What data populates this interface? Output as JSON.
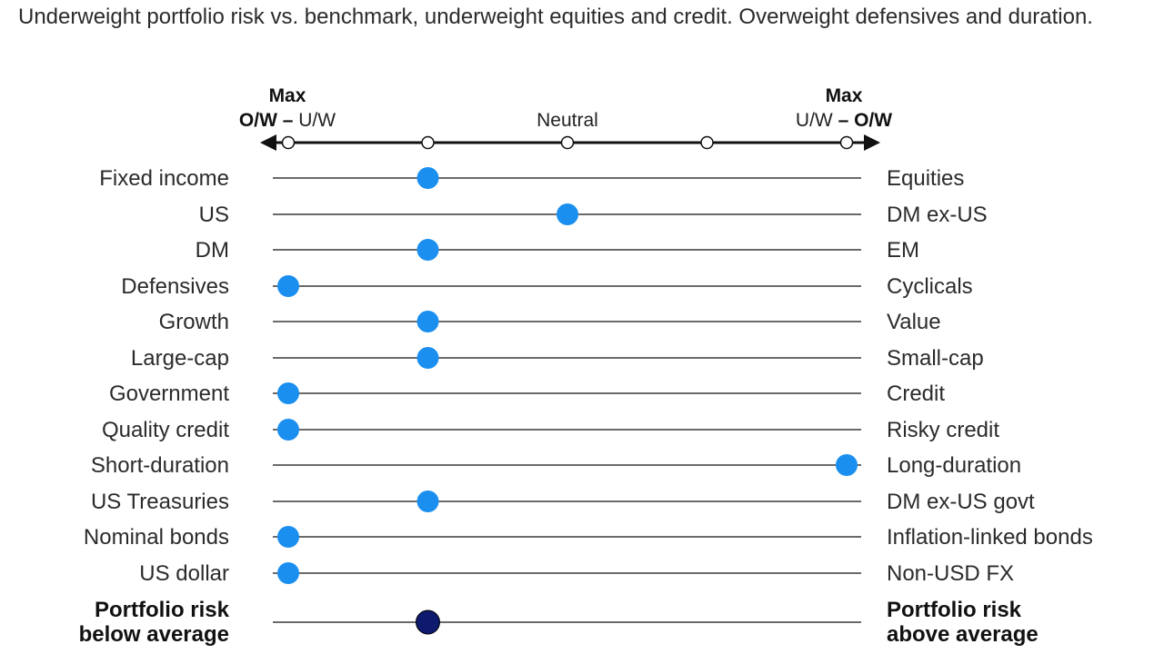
{
  "headline": "Underweight portfolio risk vs. benchmark, underweight equities and credit. Overweight defensives and duration.",
  "scale": {
    "left_top": "Max",
    "left_bottom_bold": "O/W",
    "left_bottom_dash": " – ",
    "left_bottom_plain": "U/W",
    "center": "Neutral",
    "right_top": "Max",
    "right_bottom_plain": "U/W",
    "right_bottom_dash": " – ",
    "right_bottom_bold": "O/W",
    "positions": [
      -2,
      -1,
      0,
      1,
      2
    ]
  },
  "colors": {
    "dot": "#1a8ff0",
    "dot_dark": "#0d1a6e",
    "line": "#111111"
  },
  "chart_data": {
    "type": "dot-scale",
    "x_range": [
      -2,
      2
    ],
    "rows": [
      {
        "left": [
          "Fixed income"
        ],
        "right": [
          "Equities"
        ],
        "value": -1
      },
      {
        "left": [
          "US"
        ],
        "right": [
          "DM ex-US"
        ],
        "value": 0
      },
      {
        "left": [
          "DM"
        ],
        "right": [
          "EM"
        ],
        "value": -1
      },
      {
        "left": [
          "Defensives"
        ],
        "right": [
          "Cyclicals"
        ],
        "value": -2
      },
      {
        "left": [
          "Growth"
        ],
        "right": [
          "Value"
        ],
        "value": -1
      },
      {
        "left": [
          "Large-cap"
        ],
        "right": [
          "Small-cap"
        ],
        "value": -1
      },
      {
        "left": [
          "Government"
        ],
        "right": [
          "Credit"
        ],
        "value": -2
      },
      {
        "left": [
          "Quality credit"
        ],
        "right": [
          "Risky credit"
        ],
        "value": -2
      },
      {
        "left": [
          "Short-duration"
        ],
        "right": [
          "Long-duration"
        ],
        "value": 2
      },
      {
        "left": [
          "US Treasuries"
        ],
        "right": [
          "DM ex-US govt"
        ],
        "value": -1
      },
      {
        "left": [
          "Nominal bonds"
        ],
        "right": [
          "Inflation-linked bonds"
        ],
        "value": -2
      },
      {
        "left": [
          "US dollar"
        ],
        "right": [
          "Non-USD FX"
        ],
        "value": -2
      },
      {
        "left": [
          "Portfolio risk",
          "below average"
        ],
        "right": [
          "Portfolio risk",
          "above average"
        ],
        "value": -1,
        "emphasis": true
      }
    ]
  }
}
